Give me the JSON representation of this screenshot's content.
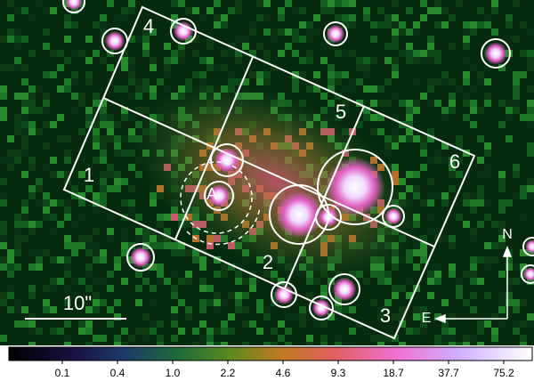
{
  "regions": {
    "labels": [
      "1",
      "2",
      "3",
      "4",
      "5",
      "6"
    ],
    "source": "A"
  },
  "scale_bar": "10\"",
  "compass": {
    "north": "N",
    "east": "E"
  },
  "colorbar": {
    "ticks": [
      "0.1",
      "0.4",
      "1.0",
      "2.2",
      "4.6",
      "9.3",
      "18.7",
      "37.7",
      "75.2"
    ]
  }
}
